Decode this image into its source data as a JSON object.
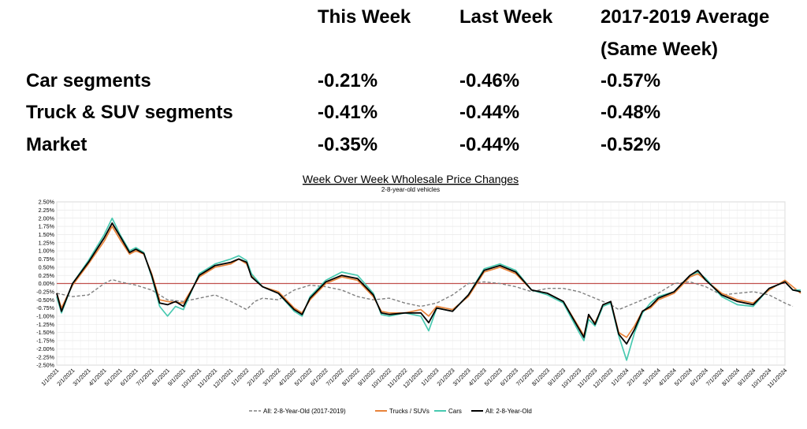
{
  "table": {
    "headers": [
      "This Week",
      "Last Week",
      "2017-2019 Average",
      "(Same Week)"
    ],
    "rows": [
      {
        "label": "Car segments",
        "this_week": "-0.21%",
        "last_week": "-0.46%",
        "avg": "-0.57%"
      },
      {
        "label": "Truck & SUV segments",
        "this_week": "-0.41%",
        "last_week": "-0.44%",
        "avg": "-0.48%"
      },
      {
        "label": "Market",
        "this_week": "-0.35%",
        "last_week": "-0.44%",
        "avg": "-0.52%"
      }
    ]
  },
  "chart_data": {
    "type": "line",
    "title": "Week Over Week Wholesale Price Changes",
    "subtitle": "2-8-year-old vehicles",
    "xlabel": "",
    "ylabel": "",
    "ylim": [
      -2.5,
      2.5
    ],
    "y_ticks": [
      "2.50%",
      "2.25%",
      "2.00%",
      "1.75%",
      "1.50%",
      "1.25%",
      "1.00%",
      "0.75%",
      "0.50%",
      "0.25%",
      "0.00%",
      "-0.25%",
      "-0.50%",
      "-0.75%",
      "-1.00%",
      "-1.25%",
      "-1.50%",
      "-1.75%",
      "-2.00%",
      "-2.25%",
      "-2.50%"
    ],
    "x_ticks": [
      "1/1/2021",
      "2/1/2021",
      "3/1/2021",
      "4/1/2021",
      "5/1/2021",
      "6/1/2021",
      "7/1/2021",
      "8/1/2021",
      "9/1/2021",
      "10/1/2021",
      "11/1/2021",
      "12/1/2021",
      "1/1/2022",
      "2/1/2022",
      "3/1/2022",
      "4/1/2022",
      "5/1/2022",
      "6/1/2022",
      "7/1/2022",
      "8/1/2022",
      "9/1/2022",
      "10/1/2022",
      "11/1/2022",
      "12/1/2022",
      "1/1/2023",
      "2/1/2023",
      "3/1/2023",
      "4/1/2023",
      "5/1/2023",
      "6/1/2023",
      "7/1/2023",
      "8/1/2023",
      "9/1/2023",
      "10/1/2023",
      "11/1/2023",
      "12/1/2023",
      "1/1/2024",
      "2/1/2024",
      "3/1/2024",
      "4/1/2024",
      "5/1/2024",
      "6/1/2024",
      "7/1/2024",
      "8/1/2024",
      "9/1/2024",
      "10/1/2024",
      "11/1/2024"
    ],
    "grid": true,
    "legend": "bottom",
    "reference_line": {
      "y": 0,
      "color": "#c0504d"
    },
    "series": [
      {
        "name": "All: 2-8-Year-Old (2017-2019)",
        "color": "#808080",
        "dash": true,
        "points": [
          [
            0,
            -0.3
          ],
          [
            0.5,
            -0.35
          ],
          [
            1,
            -0.4
          ],
          [
            2,
            -0.35
          ],
          [
            3,
            0.0
          ],
          [
            3.5,
            0.12
          ],
          [
            4,
            0.05
          ],
          [
            5,
            -0.05
          ],
          [
            6,
            -0.2
          ],
          [
            7,
            -0.5
          ],
          [
            8,
            -0.55
          ],
          [
            9,
            -0.45
          ],
          [
            10,
            -0.35
          ],
          [
            11,
            -0.55
          ],
          [
            12,
            -0.8
          ],
          [
            12.5,
            -0.55
          ],
          [
            13,
            -0.45
          ],
          [
            14,
            -0.5
          ],
          [
            15,
            -0.2
          ],
          [
            16,
            -0.05
          ],
          [
            17,
            -0.1
          ],
          [
            18,
            -0.2
          ],
          [
            19,
            -0.4
          ],
          [
            20,
            -0.5
          ],
          [
            21,
            -0.45
          ],
          [
            22,
            -0.6
          ],
          [
            23,
            -0.7
          ],
          [
            24,
            -0.6
          ],
          [
            25,
            -0.35
          ],
          [
            26,
            0.0
          ],
          [
            27,
            0.05
          ],
          [
            28,
            0.0
          ],
          [
            29,
            -0.1
          ],
          [
            30,
            -0.25
          ],
          [
            31,
            -0.15
          ],
          [
            32,
            -0.15
          ],
          [
            33,
            -0.25
          ],
          [
            34,
            -0.45
          ],
          [
            35,
            -0.65
          ],
          [
            35.5,
            -0.8
          ],
          [
            36,
            -0.7
          ],
          [
            37,
            -0.5
          ],
          [
            38,
            -0.3
          ],
          [
            39,
            0.0
          ],
          [
            40,
            0.05
          ],
          [
            41,
            -0.1
          ],
          [
            42,
            -0.35
          ],
          [
            43,
            -0.3
          ],
          [
            44,
            -0.25
          ],
          [
            45,
            -0.35
          ],
          [
            46,
            -0.6
          ],
          [
            46.5,
            -0.7
          ]
        ]
      },
      {
        "name": "Trucks / SUVs",
        "color": "#e8833a",
        "dash": false,
        "points": [
          [
            0,
            -0.3
          ],
          [
            0.3,
            -0.75
          ],
          [
            1,
            -0.05
          ],
          [
            2,
            0.6
          ],
          [
            3,
            1.3
          ],
          [
            3.5,
            1.75
          ],
          [
            4,
            1.35
          ],
          [
            4.6,
            0.9
          ],
          [
            5,
            1.0
          ],
          [
            5.5,
            0.9
          ],
          [
            6,
            0.3
          ],
          [
            6.5,
            -0.5
          ],
          [
            7,
            -0.55
          ],
          [
            8,
            -0.6
          ],
          [
            9,
            0.2
          ],
          [
            10,
            0.5
          ],
          [
            11,
            0.6
          ],
          [
            11.5,
            0.75
          ],
          [
            12,
            0.6
          ],
          [
            12.3,
            0.25
          ],
          [
            13,
            -0.1
          ],
          [
            14,
            -0.25
          ],
          [
            15,
            -0.75
          ],
          [
            15.5,
            -0.9
          ],
          [
            16,
            -0.5
          ],
          [
            17,
            0.0
          ],
          [
            18,
            0.2
          ],
          [
            19,
            0.1
          ],
          [
            20,
            -0.4
          ],
          [
            20.5,
            -0.85
          ],
          [
            21,
            -0.9
          ],
          [
            22,
            -0.9
          ],
          [
            23,
            -0.8
          ],
          [
            23.5,
            -1.0
          ],
          [
            24,
            -0.7
          ],
          [
            25,
            -0.8
          ],
          [
            26,
            -0.4
          ],
          [
            27,
            0.35
          ],
          [
            28,
            0.5
          ],
          [
            29,
            0.3
          ],
          [
            30,
            -0.2
          ],
          [
            31,
            -0.3
          ],
          [
            32,
            -0.55
          ],
          [
            33,
            -1.35
          ],
          [
            33.3,
            -1.6
          ],
          [
            33.6,
            -1.0
          ],
          [
            34,
            -1.2
          ],
          [
            34.5,
            -0.7
          ],
          [
            35,
            -0.55
          ],
          [
            35.5,
            -1.5
          ],
          [
            36,
            -1.65
          ],
          [
            36.5,
            -1.3
          ],
          [
            37,
            -0.85
          ],
          [
            37.5,
            -0.75
          ],
          [
            38,
            -0.5
          ],
          [
            39,
            -0.3
          ],
          [
            40,
            0.2
          ],
          [
            40.5,
            0.3
          ],
          [
            41,
            0.1
          ],
          [
            42,
            -0.3
          ],
          [
            43,
            -0.5
          ],
          [
            44,
            -0.6
          ],
          [
            45,
            -0.2
          ],
          [
            46,
            0.1
          ],
          [
            46.5,
            -0.1
          ],
          [
            47,
            -0.3
          ]
        ]
      },
      {
        "name": "Cars",
        "color": "#48c9b0",
        "dash": false,
        "points": [
          [
            0,
            -0.4
          ],
          [
            0.3,
            -0.9
          ],
          [
            1,
            0.0
          ],
          [
            2,
            0.7
          ],
          [
            3,
            1.5
          ],
          [
            3.5,
            2.0
          ],
          [
            4,
            1.5
          ],
          [
            4.6,
            1.0
          ],
          [
            5,
            1.1
          ],
          [
            5.5,
            0.95
          ],
          [
            6,
            0.2
          ],
          [
            6.5,
            -0.7
          ],
          [
            7,
            -1.0
          ],
          [
            7.5,
            -0.7
          ],
          [
            8,
            -0.8
          ],
          [
            9,
            0.3
          ],
          [
            10,
            0.6
          ],
          [
            11,
            0.75
          ],
          [
            11.5,
            0.85
          ],
          [
            12,
            0.7
          ],
          [
            12.3,
            0.3
          ],
          [
            13,
            -0.1
          ],
          [
            14,
            -0.3
          ],
          [
            15,
            -0.85
          ],
          [
            15.5,
            -1.0
          ],
          [
            16,
            -0.4
          ],
          [
            17,
            0.1
          ],
          [
            18,
            0.35
          ],
          [
            19,
            0.25
          ],
          [
            20,
            -0.3
          ],
          [
            20.5,
            -0.95
          ],
          [
            21,
            -1.0
          ],
          [
            22,
            -0.9
          ],
          [
            23,
            -1.0
          ],
          [
            23.5,
            -1.45
          ],
          [
            24,
            -0.75
          ],
          [
            25,
            -0.85
          ],
          [
            26,
            -0.35
          ],
          [
            27,
            0.45
          ],
          [
            28,
            0.6
          ],
          [
            29,
            0.4
          ],
          [
            30,
            -0.2
          ],
          [
            31,
            -0.35
          ],
          [
            32,
            -0.6
          ],
          [
            33,
            -1.5
          ],
          [
            33.3,
            -1.75
          ],
          [
            33.6,
            -1.1
          ],
          [
            34,
            -1.3
          ],
          [
            34.5,
            -0.7
          ],
          [
            35,
            -0.6
          ],
          [
            35.5,
            -1.6
          ],
          [
            36,
            -2.35
          ],
          [
            36.5,
            -1.5
          ],
          [
            37,
            -0.9
          ],
          [
            37.5,
            -0.6
          ],
          [
            38,
            -0.4
          ],
          [
            39,
            -0.25
          ],
          [
            40,
            0.25
          ],
          [
            40.5,
            0.35
          ],
          [
            41,
            0.15
          ],
          [
            42,
            -0.4
          ],
          [
            43,
            -0.65
          ],
          [
            44,
            -0.7
          ],
          [
            45,
            -0.15
          ],
          [
            46,
            0.05
          ],
          [
            46.5,
            -0.2
          ],
          [
            47,
            -0.2
          ]
        ]
      },
      {
        "name": "All: 2-8-Year-Old",
        "color": "#000000",
        "dash": false,
        "points": [
          [
            0,
            -0.3
          ],
          [
            0.3,
            -0.85
          ],
          [
            1,
            0.0
          ],
          [
            2,
            0.65
          ],
          [
            3,
            1.4
          ],
          [
            3.5,
            1.85
          ],
          [
            4,
            1.45
          ],
          [
            4.6,
            0.95
          ],
          [
            5,
            1.05
          ],
          [
            5.5,
            0.92
          ],
          [
            6,
            0.25
          ],
          [
            6.5,
            -0.6
          ],
          [
            7,
            -0.65
          ],
          [
            7.5,
            -0.55
          ],
          [
            8,
            -0.7
          ],
          [
            9,
            0.25
          ],
          [
            10,
            0.55
          ],
          [
            11,
            0.65
          ],
          [
            11.5,
            0.75
          ],
          [
            12,
            0.65
          ],
          [
            12.3,
            0.2
          ],
          [
            13,
            -0.1
          ],
          [
            14,
            -0.3
          ],
          [
            15,
            -0.8
          ],
          [
            15.5,
            -0.95
          ],
          [
            16,
            -0.45
          ],
          [
            17,
            0.05
          ],
          [
            18,
            0.25
          ],
          [
            19,
            0.15
          ],
          [
            20,
            -0.35
          ],
          [
            20.5,
            -0.9
          ],
          [
            21,
            -0.95
          ],
          [
            22,
            -0.9
          ],
          [
            23,
            -0.9
          ],
          [
            23.5,
            -1.2
          ],
          [
            24,
            -0.75
          ],
          [
            25,
            -0.85
          ],
          [
            26,
            -0.35
          ],
          [
            27,
            0.4
          ],
          [
            28,
            0.55
          ],
          [
            29,
            0.35
          ],
          [
            30,
            -0.2
          ],
          [
            31,
            -0.3
          ],
          [
            32,
            -0.55
          ],
          [
            33,
            -1.4
          ],
          [
            33.3,
            -1.65
          ],
          [
            33.6,
            -0.95
          ],
          [
            34,
            -1.25
          ],
          [
            34.5,
            -0.65
          ],
          [
            35,
            -0.55
          ],
          [
            35.5,
            -1.55
          ],
          [
            36,
            -1.85
          ],
          [
            36.5,
            -1.4
          ],
          [
            37,
            -0.85
          ],
          [
            37.5,
            -0.7
          ],
          [
            38,
            -0.45
          ],
          [
            39,
            -0.25
          ],
          [
            40,
            0.25
          ],
          [
            40.5,
            0.4
          ],
          [
            41,
            0.1
          ],
          [
            42,
            -0.35
          ],
          [
            43,
            -0.55
          ],
          [
            44,
            -0.65
          ],
          [
            45,
            -0.15
          ],
          [
            46,
            0.05
          ],
          [
            46.5,
            -0.2
          ],
          [
            47,
            -0.25
          ]
        ]
      }
    ]
  }
}
